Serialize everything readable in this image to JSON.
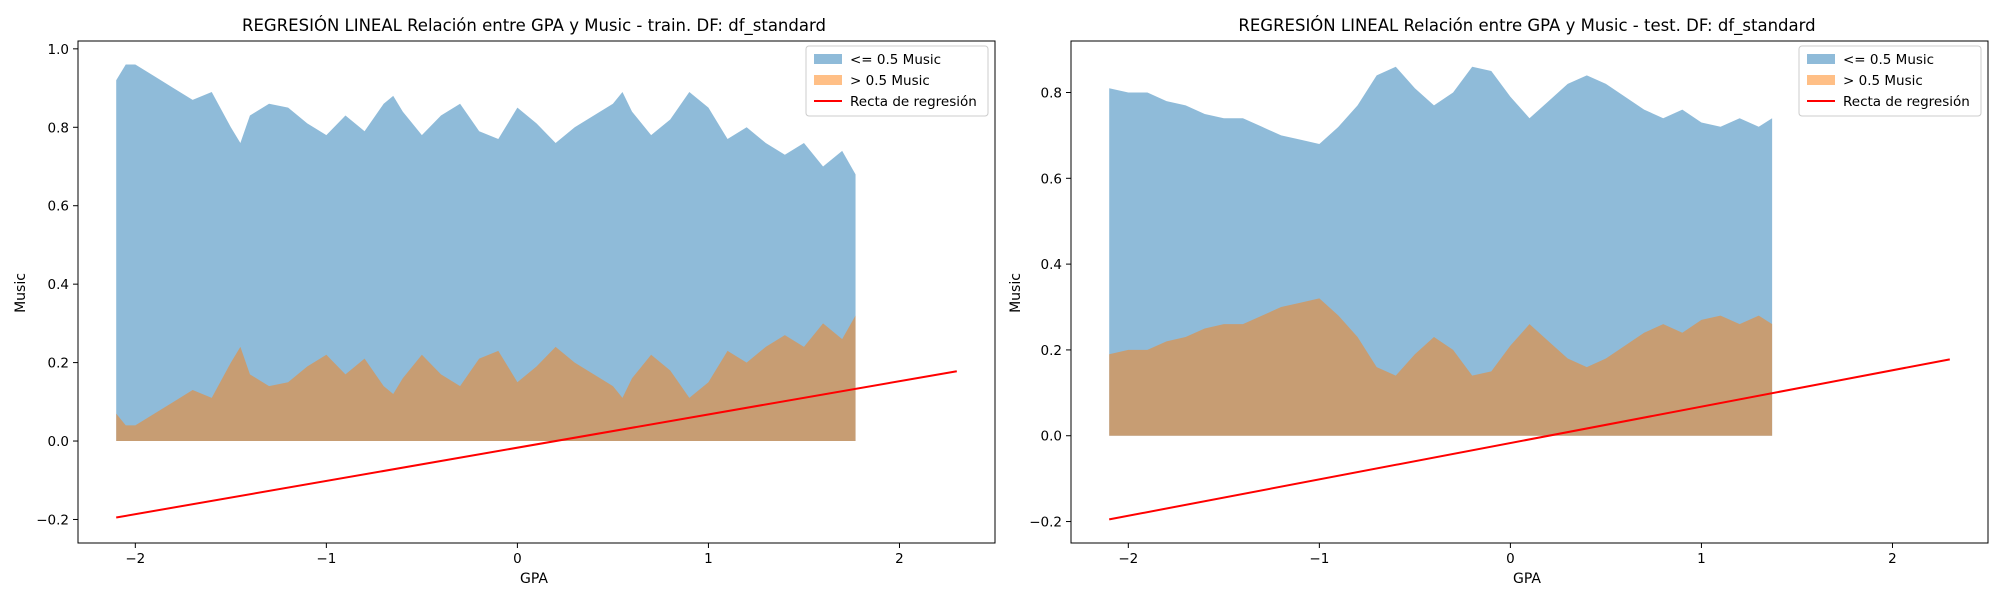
{
  "chart_data": [
    {
      "type": "area",
      "title": "REGRESIÓN LINEAL Relación entre GPA y Music - train. DF: df_standard",
      "xlabel": "GPA",
      "ylabel": "Music",
      "xlim": [
        -2.3,
        2.5
      ],
      "ylim": [
        -0.26,
        1.02
      ],
      "xticks": [
        -2,
        -1,
        0,
        1,
        2
      ],
      "yticks": [
        -0.2,
        0.0,
        0.2,
        0.4,
        0.6,
        0.8,
        1.0
      ],
      "xtick_labels": [
        "−2",
        "−1",
        "0",
        "1",
        "2"
      ],
      "ytick_labels": [
        "−0.2",
        "0.0",
        "0.2",
        "0.4",
        "0.6",
        "0.8",
        "1.0"
      ],
      "legend": "top-right",
      "series": [
        {
          "name": "<= 0.5 Music",
          "color": "#1f77b4",
          "opacity": 0.5,
          "x": [
            -2.1,
            -2.05,
            -2.0,
            -1.9,
            -1.8,
            -1.7,
            -1.6,
            -1.5,
            -1.45,
            -1.4,
            -1.3,
            -1.2,
            -1.1,
            -1.0,
            -0.9,
            -0.8,
            -0.7,
            -0.65,
            -0.6,
            -0.5,
            -0.4,
            -0.3,
            -0.2,
            -0.1,
            0.0,
            0.1,
            0.2,
            0.3,
            0.4,
            0.5,
            0.55,
            0.6,
            0.7,
            0.8,
            0.9,
            1.0,
            1.1,
            1.2,
            1.3,
            1.4,
            1.5,
            1.6,
            1.7,
            1.77
          ],
          "values": [
            0.92,
            0.96,
            0.96,
            0.93,
            0.9,
            0.87,
            0.89,
            0.8,
            0.76,
            0.83,
            0.86,
            0.85,
            0.81,
            0.78,
            0.83,
            0.79,
            0.86,
            0.88,
            0.84,
            0.78,
            0.83,
            0.86,
            0.79,
            0.77,
            0.85,
            0.81,
            0.76,
            0.8,
            0.83,
            0.86,
            0.89,
            0.84,
            0.78,
            0.82,
            0.89,
            0.85,
            0.77,
            0.8,
            0.76,
            0.73,
            0.76,
            0.7,
            0.74,
            0.68
          ]
        },
        {
          "name": "> 0.5 Music",
          "color": "#ff7f0e",
          "opacity": 0.5,
          "x": [
            -2.1,
            -2.05,
            -2.0,
            -1.9,
            -1.8,
            -1.7,
            -1.6,
            -1.5,
            -1.45,
            -1.4,
            -1.3,
            -1.2,
            -1.1,
            -1.0,
            -0.9,
            -0.8,
            -0.7,
            -0.65,
            -0.6,
            -0.5,
            -0.4,
            -0.3,
            -0.2,
            -0.1,
            0.0,
            0.1,
            0.2,
            0.3,
            0.4,
            0.5,
            0.55,
            0.6,
            0.7,
            0.8,
            0.9,
            1.0,
            1.1,
            1.2,
            1.3,
            1.4,
            1.5,
            1.6,
            1.7,
            1.77
          ],
          "values": [
            0.07,
            0.04,
            0.04,
            0.07,
            0.1,
            0.13,
            0.11,
            0.2,
            0.24,
            0.17,
            0.14,
            0.15,
            0.19,
            0.22,
            0.17,
            0.21,
            0.14,
            0.12,
            0.16,
            0.22,
            0.17,
            0.14,
            0.21,
            0.23,
            0.15,
            0.19,
            0.24,
            0.2,
            0.17,
            0.14,
            0.11,
            0.16,
            0.22,
            0.18,
            0.11,
            0.15,
            0.23,
            0.2,
            0.24,
            0.27,
            0.24,
            0.3,
            0.26,
            0.32
          ]
        },
        {
          "name": "Recta de regresión",
          "color": "#ff0000",
          "type": "line",
          "x": [
            -2.1,
            2.3
          ],
          "values": [
            -0.195,
            0.178
          ]
        }
      ]
    },
    {
      "type": "area",
      "title": "REGRESIÓN LINEAL Relación entre GPA y Music - test. DF: df_standard",
      "xlabel": "GPA",
      "ylabel": "Music",
      "xlim": [
        -2.3,
        2.5
      ],
      "ylim": [
        -0.25,
        0.92
      ],
      "xticks": [
        -2,
        -1,
        0,
        1,
        2
      ],
      "yticks": [
        -0.2,
        0.0,
        0.2,
        0.4,
        0.6,
        0.8
      ],
      "xtick_labels": [
        "−2",
        "−1",
        "0",
        "1",
        "2"
      ],
      "ytick_labels": [
        "−0.2",
        "0.0",
        "0.2",
        "0.4",
        "0.6",
        "0.8"
      ],
      "legend": "top-right",
      "series": [
        {
          "name": "<= 0.5 Music",
          "color": "#1f77b4",
          "opacity": 0.5,
          "x": [
            -2.1,
            -2.0,
            -1.9,
            -1.8,
            -1.7,
            -1.6,
            -1.5,
            -1.4,
            -1.3,
            -1.2,
            -1.1,
            -1.0,
            -0.9,
            -0.8,
            -0.7,
            -0.6,
            -0.5,
            -0.4,
            -0.3,
            -0.2,
            -0.1,
            0.0,
            0.1,
            0.2,
            0.3,
            0.4,
            0.5,
            0.6,
            0.7,
            0.8,
            0.9,
            1.0,
            1.1,
            1.2,
            1.3,
            1.37
          ],
          "values": [
            0.81,
            0.8,
            0.8,
            0.78,
            0.77,
            0.75,
            0.74,
            0.74,
            0.72,
            0.7,
            0.69,
            0.68,
            0.72,
            0.77,
            0.84,
            0.86,
            0.81,
            0.77,
            0.8,
            0.86,
            0.85,
            0.79,
            0.74,
            0.78,
            0.82,
            0.84,
            0.82,
            0.79,
            0.76,
            0.74,
            0.76,
            0.73,
            0.72,
            0.74,
            0.72,
            0.74
          ]
        },
        {
          "name": "> 0.5 Music",
          "color": "#ff7f0e",
          "opacity": 0.5,
          "x": [
            -2.1,
            -2.0,
            -1.9,
            -1.8,
            -1.7,
            -1.6,
            -1.5,
            -1.4,
            -1.3,
            -1.2,
            -1.1,
            -1.0,
            -0.9,
            -0.8,
            -0.7,
            -0.6,
            -0.5,
            -0.4,
            -0.3,
            -0.2,
            -0.1,
            0.0,
            0.1,
            0.2,
            0.3,
            0.4,
            0.5,
            0.6,
            0.7,
            0.8,
            0.9,
            1.0,
            1.1,
            1.2,
            1.3,
            1.37
          ],
          "values": [
            0.19,
            0.2,
            0.2,
            0.22,
            0.23,
            0.25,
            0.26,
            0.26,
            0.28,
            0.3,
            0.31,
            0.32,
            0.28,
            0.23,
            0.16,
            0.14,
            0.19,
            0.23,
            0.2,
            0.14,
            0.15,
            0.21,
            0.26,
            0.22,
            0.18,
            0.16,
            0.18,
            0.21,
            0.24,
            0.26,
            0.24,
            0.27,
            0.28,
            0.26,
            0.28,
            0.26
          ]
        },
        {
          "name": "Recta de regresión",
          "color": "#ff0000",
          "type": "line",
          "x": [
            -2.1,
            2.3
          ],
          "values": [
            -0.195,
            0.178
          ]
        }
      ]
    }
  ]
}
